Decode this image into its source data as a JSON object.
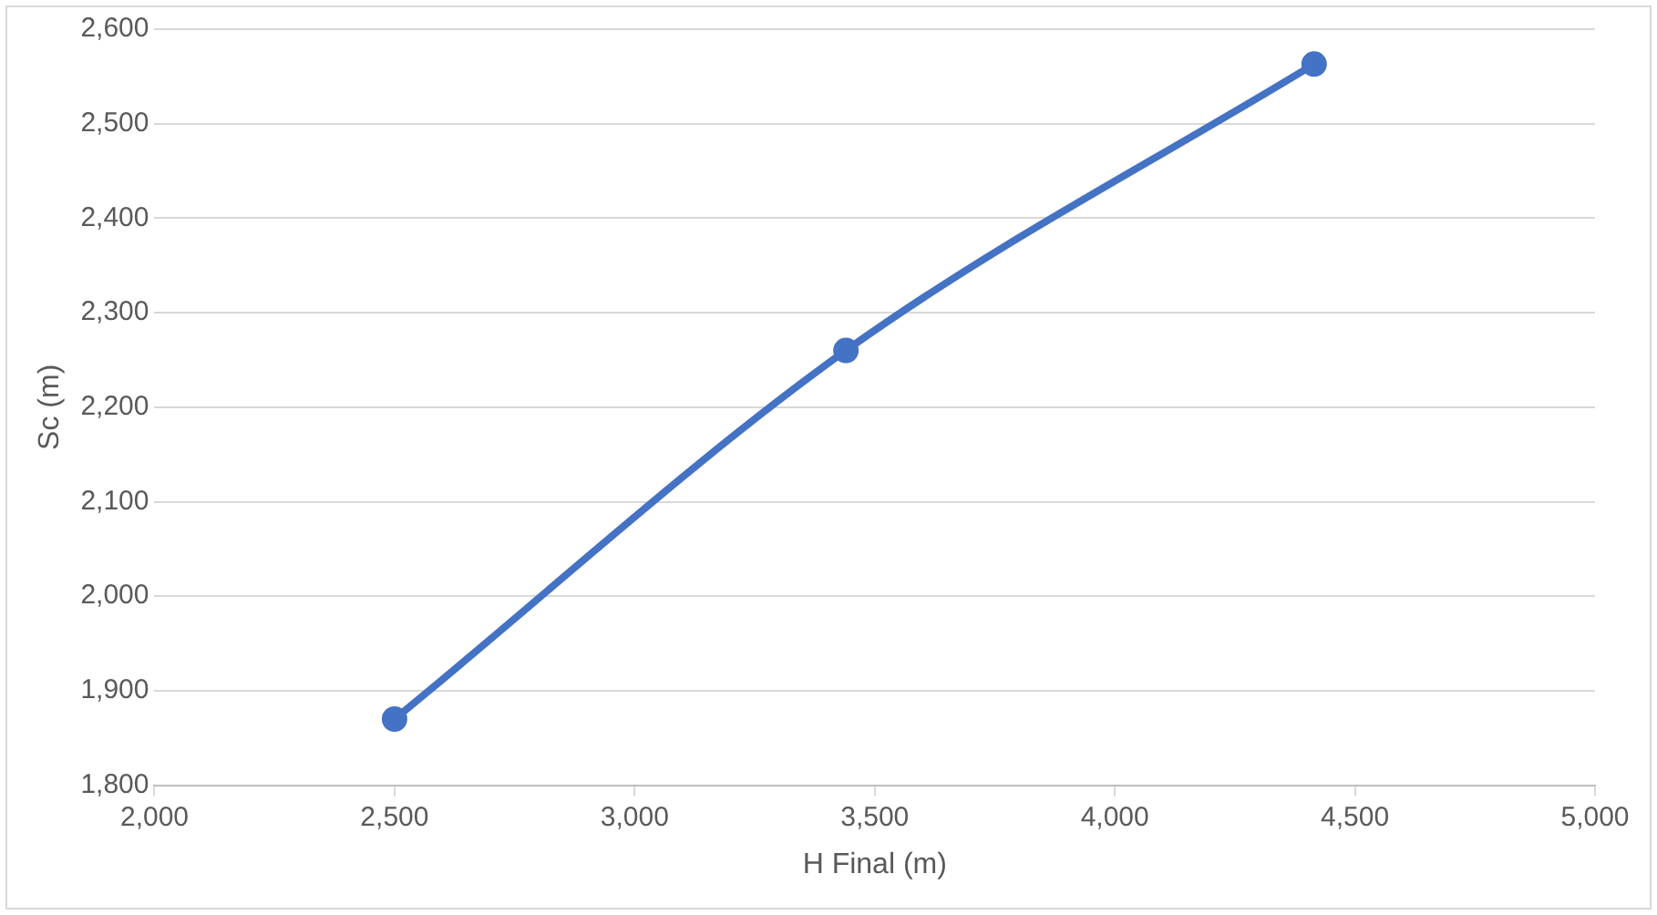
{
  "chart_data": {
    "type": "line",
    "xlabel": "H Final (m)",
    "ylabel": "Sc (m)",
    "x": [
      2500,
      3440,
      4415
    ],
    "series": [
      {
        "color": "#4472c4",
        "values": [
          1870,
          2260,
          2563
        ]
      }
    ],
    "xlim": [
      2000,
      5000
    ],
    "xticks": [
      {
        "value": 2000,
        "label": "2,000"
      },
      {
        "value": 2500,
        "label": "2,500"
      },
      {
        "value": 3000,
        "label": "3,000"
      },
      {
        "value": 3500,
        "label": "3,500"
      },
      {
        "value": 4000,
        "label": "4,000"
      },
      {
        "value": 4500,
        "label": "4,500"
      },
      {
        "value": 5000,
        "label": "5,000"
      }
    ],
    "ylim": [
      1800,
      2600
    ],
    "yticks": [
      {
        "value": 1800,
        "label": "1,800"
      },
      {
        "value": 1900,
        "label": "1,900"
      },
      {
        "value": 2000,
        "label": "2,000"
      },
      {
        "value": 2100,
        "label": "2,100"
      },
      {
        "value": 2200,
        "label": "2,200"
      },
      {
        "value": 2300,
        "label": "2,300"
      },
      {
        "value": 2400,
        "label": "2,400"
      },
      {
        "value": 2500,
        "label": "2,500"
      },
      {
        "value": 2600,
        "label": "2,600"
      }
    ],
    "grid": "y",
    "marker": "circle",
    "line_style": "solid",
    "legend": false
  }
}
